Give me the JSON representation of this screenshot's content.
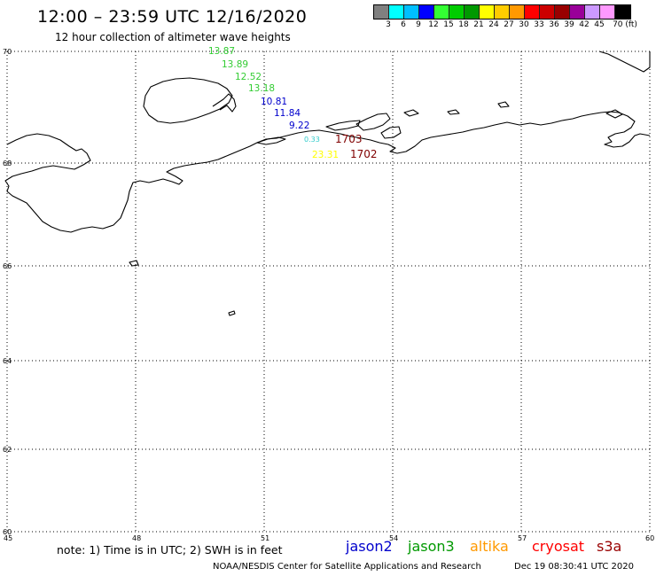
{
  "title": "12:00 – 23:59 UTC 12/16/2020",
  "subtitle": "12 hour collection of altimeter wave heights",
  "colorbar": {
    "labels": [
      "3",
      "6",
      "9",
      "12",
      "15",
      "18",
      "21",
      "24",
      "27",
      "30",
      "33",
      "36",
      "39",
      "42",
      "45",
      "70 (ft)"
    ],
    "colors": [
      "#808080",
      "#00ffff",
      "#00bfff",
      "#0000ff",
      "#33ff33",
      "#00cc00",
      "#009900",
      "#ffff00",
      "#ffcc00",
      "#ff9900",
      "#ff0000",
      "#cc0000",
      "#990000",
      "#990099",
      "#cc99ff",
      "#ff99ff",
      "#000000"
    ]
  },
  "map": {
    "lat_ticks": [
      "70",
      "68",
      "66",
      "64",
      "62",
      "60"
    ],
    "lon_ticks": [
      "45",
      "48",
      "51",
      "54",
      "57",
      "60"
    ],
    "wave_heights": [
      {
        "text": "13.87",
        "color": "#33cc33"
      },
      {
        "text": "13.89",
        "color": "#33cc33"
      },
      {
        "text": "12.52",
        "color": "#33cc33"
      },
      {
        "text": "13.18",
        "color": "#33cc33"
      },
      {
        "text": "10.81",
        "color": "#0000cc"
      },
      {
        "text": "11.84",
        "color": "#0000cc"
      },
      {
        "text": "9.22",
        "color": "#0000cc"
      },
      {
        "text": "0.33",
        "color": "#33cccc"
      },
      {
        "text": "1703",
        "color": "#800000"
      },
      {
        "text": "23.31",
        "color": "#ffff00"
      },
      {
        "text": "1702",
        "color": "#800000"
      }
    ]
  },
  "note": "note:  1) Time is in UTC;  2) SWH is in feet",
  "legend": [
    {
      "name": "jason2",
      "color": "#0000cc"
    },
    {
      "name": "jason3",
      "color": "#009900"
    },
    {
      "name": "altika",
      "color": "#ff9900"
    },
    {
      "name": "cryosat",
      "color": "#ff0000"
    },
    {
      "name": "s3a",
      "color": "#990000"
    }
  ],
  "credit": "NOAA/NESDIS Center for Satellite Applications and Research",
  "credit_date": "Dec 19 08:30:41 UTC 2020"
}
